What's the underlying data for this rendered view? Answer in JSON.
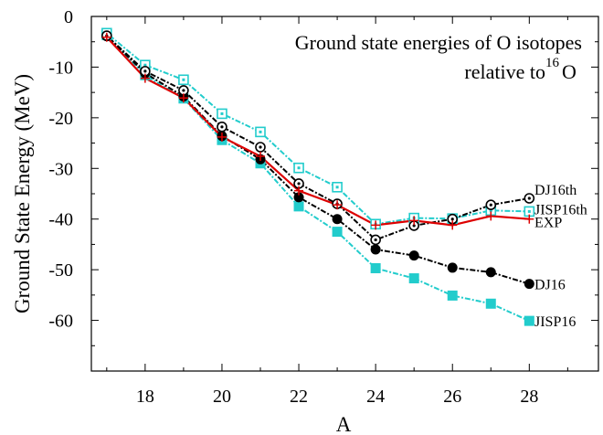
{
  "chart_data": {
    "type": "line",
    "title_line1": "Ground state energies of O isotopes",
    "title_line2_prefix": "relative to ",
    "title_line2_sup": "16",
    "title_line2_suffix": "O",
    "xlabel": "A",
    "ylabel": "Ground State Energy (MeV)",
    "xlim": [
      16.6,
      29.8
    ],
    "ylim": [
      -70,
      0
    ],
    "xticks": [
      18,
      20,
      22,
      24,
      26,
      28
    ],
    "yticks": [
      0,
      -10,
      -20,
      -30,
      -40,
      -50,
      -60
    ],
    "grid": false,
    "series": [
      {
        "name": "EXP",
        "color": "#dd0000",
        "marker": "plus",
        "dash": "",
        "x": [
          17,
          18,
          19,
          20,
          21,
          22,
          23,
          24,
          25,
          26,
          27,
          28
        ],
        "values": [
          -4.1,
          -12.2,
          -16.1,
          -23.8,
          -27.6,
          -34.4,
          -37.2,
          -41.2,
          -40.3,
          -41.2,
          -39.4,
          -40.0
        ]
      },
      {
        "name": "DJ16th",
        "color": "#000000",
        "marker": "circle-open",
        "dash": "2 2 6 2",
        "x": [
          17,
          18,
          19,
          20,
          21,
          22,
          23,
          24,
          25,
          26,
          27,
          28
        ],
        "values": [
          -3.8,
          -10.8,
          -14.6,
          -21.8,
          -25.8,
          -33.0,
          -37.0,
          -44.1,
          -41.3,
          -40.0,
          -37.2,
          -35.9
        ]
      },
      {
        "name": "JISP16th",
        "color": "#22cccc",
        "marker": "square-open",
        "dash": "2 2 6 2",
        "x": [
          17,
          18,
          19,
          20,
          21,
          22,
          23,
          24,
          25,
          26,
          27,
          28
        ],
        "values": [
          -3.3,
          -9.6,
          -12.5,
          -19.2,
          -22.8,
          -29.9,
          -33.7,
          -41.0,
          -39.8,
          -39.9,
          -38.3,
          -38.5
        ]
      },
      {
        "name": "DJ16",
        "color": "#000000",
        "marker": "circle-filled",
        "dash": "2 2 6 2",
        "x": [
          17,
          18,
          19,
          20,
          21,
          22,
          23,
          24,
          25,
          26,
          27,
          28
        ],
        "values": [
          -3.9,
          -11.2,
          -15.8,
          -23.6,
          -28.2,
          -35.7,
          -40.0,
          -46.0,
          -47.2,
          -49.6,
          -50.5,
          -52.8
        ]
      },
      {
        "name": "JISP16",
        "color": "#22cccc",
        "marker": "square-filled",
        "dash": "2 2 6 2",
        "x": [
          17,
          18,
          19,
          20,
          21,
          22,
          23,
          24,
          25,
          26,
          27,
          28
        ],
        "values": [
          -3.7,
          -11.6,
          -16.2,
          -24.4,
          -29.0,
          -37.5,
          -42.5,
          -49.7,
          -51.7,
          -55.1,
          -56.7,
          -60.1
        ]
      }
    ]
  }
}
